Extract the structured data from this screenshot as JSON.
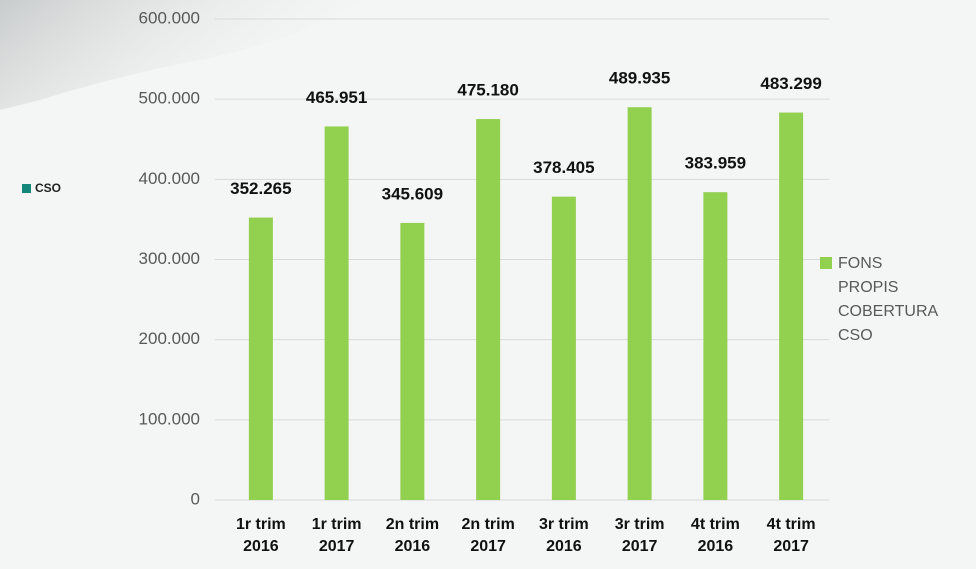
{
  "chart_data": {
    "type": "bar",
    "categories": [
      "1r trim 2016",
      "1r trim 2017",
      "2n trim 2016",
      "2n trim 2017",
      "3r trim 2016",
      "3r trim 2017",
      "4t trim 2016",
      "4t trim 2017"
    ],
    "series": [
      {
        "name": "FONS PROPIS COBERTURA CSO",
        "color": "#92d050",
        "values": [
          352265,
          465951,
          345609,
          475180,
          378405,
          489935,
          383959,
          483299
        ],
        "value_labels": [
          "352.265",
          "465.951",
          "345.609",
          "475.180",
          "378.405",
          "489.935",
          "383.959",
          "483.299"
        ]
      }
    ],
    "ylim": [
      0,
      600000
    ],
    "yticks": [
      0,
      {
        "value": 100000,
        "label": "100.000"
      },
      {
        "value": 200000,
        "label": "200.000"
      },
      {
        "value": 300000,
        "label": "300.000"
      },
      {
        "value": 400000,
        "label": "400.000"
      },
      {
        "value": 500000,
        "label": "500.000"
      },
      {
        "value": 600000,
        "label": "600.000"
      }
    ],
    "grid": true,
    "legend": "right",
    "side_label": {
      "text": "CSO",
      "color": "#14877a"
    }
  }
}
